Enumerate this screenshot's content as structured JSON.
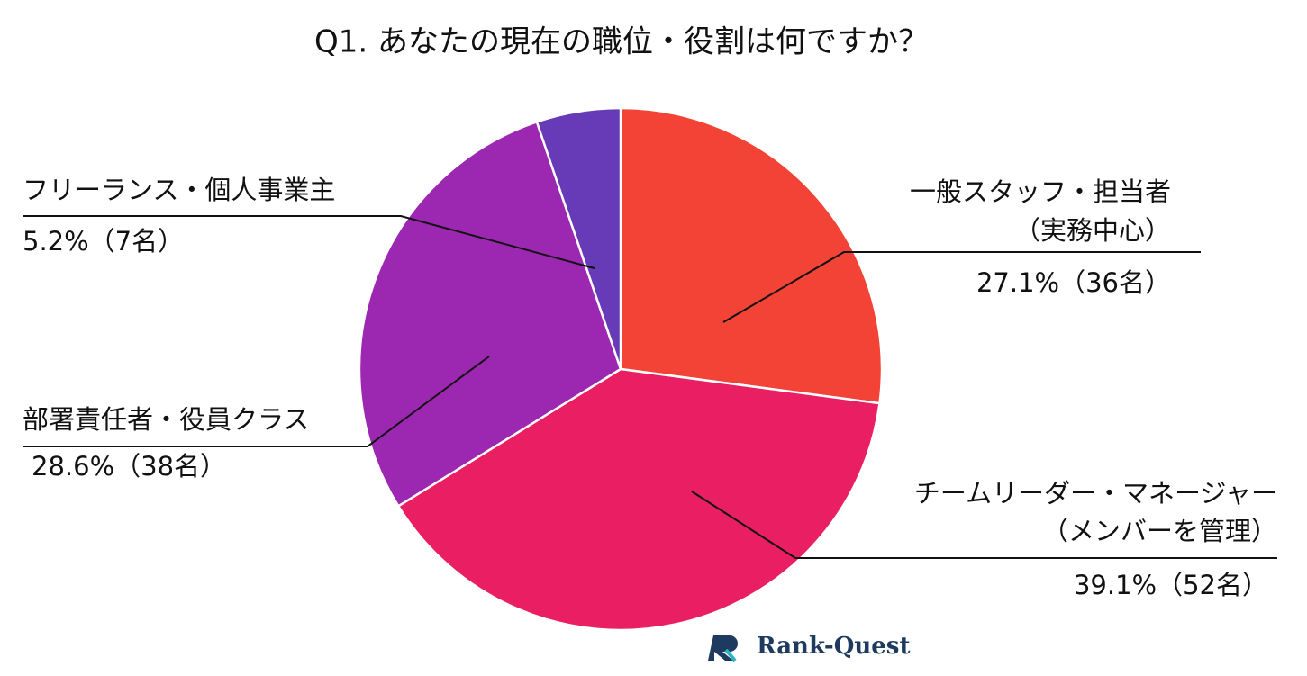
{
  "chart_data": {
    "type": "pie",
    "title": "Q1. あなたの現在の職位・役割は何ですか？",
    "categories": [
      [
        "一般スタッフ・担当者",
        "（実務中心）"
      ],
      [
        "チームリーダー・マネージャー",
        "（メンバーを管理）"
      ],
      [
        "部署責任者・役員クラス"
      ],
      [
        "フリーランス・個人事業主"
      ]
    ],
    "values": [
      27.1,
      39.1,
      28.6,
      5.2
    ],
    "value_labels": [
      "27.1%（36名）",
      "39.1%（52名）",
      "28.6%（38名）",
      "5.2%（7名）"
    ],
    "colors": [
      "#f24336",
      "#e91e63",
      "#9c27b0",
      "#673ab7"
    ],
    "watermark": "Rank-Quest"
  }
}
